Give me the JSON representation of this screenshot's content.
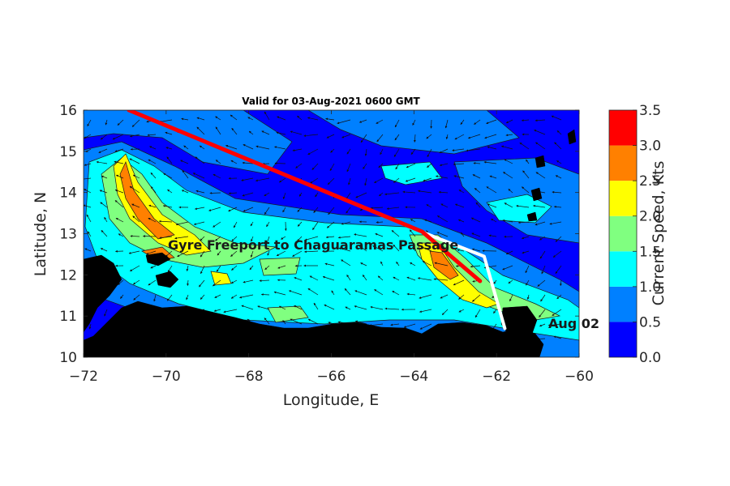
{
  "title": "Valid for 03-Aug-2021 0600 GMT",
  "x_axis": {
    "label": "Longitude, E",
    "ticks": [
      -72,
      -70,
      -68,
      -66,
      -64,
      -62,
      -60
    ],
    "tick_labels": [
      "−72",
      "−70",
      "−68",
      "−66",
      "−64",
      "−62",
      "−60"
    ],
    "range": [
      -72,
      -60
    ]
  },
  "y_axis": {
    "label": "Latitude, N",
    "ticks": [
      10,
      11,
      12,
      13,
      14,
      15,
      16
    ],
    "tick_labels": [
      "10",
      "11",
      "12",
      "13",
      "14",
      "15",
      "16"
    ],
    "range": [
      10,
      16
    ]
  },
  "route_label": "Gyre Freeport to Chaguaramas Passage",
  "date_label": "Aug 02",
  "colorbar": {
    "label": "Current Speed, Kts",
    "levels": [
      0.0,
      0.5,
      1.0,
      1.5,
      2.0,
      2.5,
      3.0,
      3.5
    ],
    "tick_labels": [
      "0.0",
      "0.5",
      "1.0",
      "1.5",
      "2.0",
      "2.5",
      "3.0",
      "3.5"
    ],
    "colors": [
      "#0000ff",
      "#0080ff",
      "#00ffff",
      "#80ff80",
      "#ffff00",
      "#ff8000",
      "#ff0000"
    ]
  },
  "colors": {
    "land": "#000000",
    "contour_lines": "#1a1a1a",
    "route_planned": "#ffffff",
    "route_actual": "#ff0000"
  },
  "planned_route": [
    {
      "lon": -70.9,
      "lat": 16.0
    },
    {
      "lon": -63.7,
      "lat": 13.0
    },
    {
      "lon": -62.3,
      "lat": 12.45
    },
    {
      "lon": -61.8,
      "lat": 10.7
    }
  ],
  "actual_route": [
    {
      "lon": -70.9,
      "lat": 16.0
    },
    {
      "lon": -63.8,
      "lat": 13.05
    },
    {
      "lon": -62.4,
      "lat": 11.85
    }
  ]
}
